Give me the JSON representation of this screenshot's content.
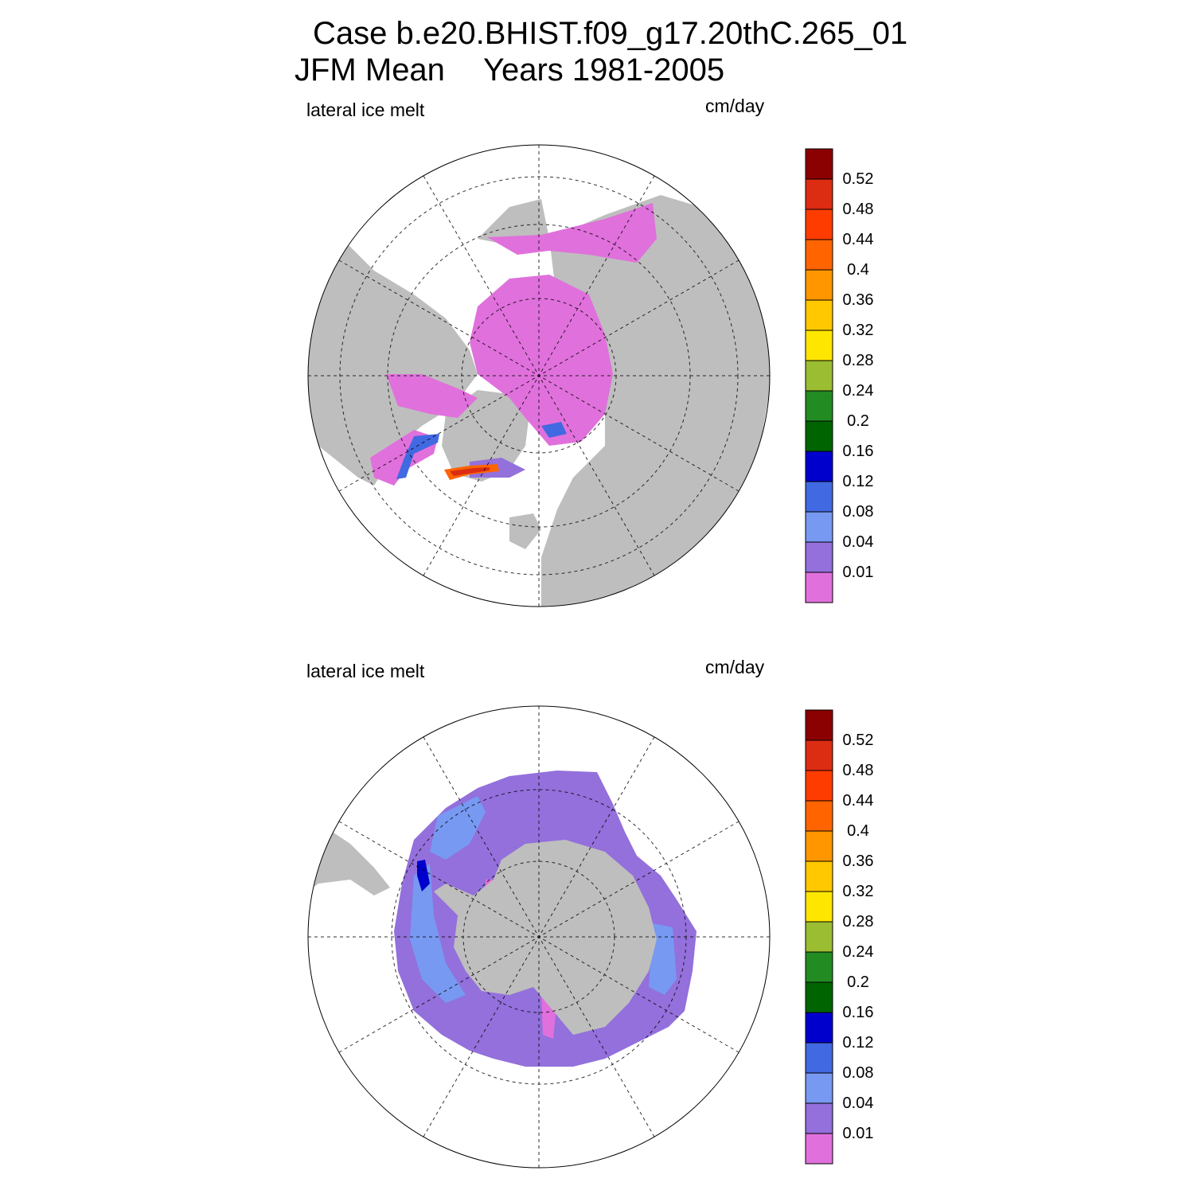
{
  "title": {
    "line1": "Case b.e20.BHIST.f09_g17.20thC.265_01",
    "season": "JFM Mean",
    "years": "Years 1981-2005"
  },
  "panels": [
    {
      "hemisphere": "north",
      "variable_label": "lateral ice melt",
      "units": "cm/day"
    },
    {
      "hemisphere": "south",
      "variable_label": "lateral ice melt",
      "units": "cm/day"
    }
  ],
  "colorbar": {
    "levels": [
      "0.52",
      "0.48",
      "0.44",
      "0.4",
      "0.36",
      "0.32",
      "0.28",
      "0.24",
      "0.2",
      "0.16",
      "0.12",
      "0.08",
      "0.04",
      "0.01"
    ],
    "colors": [
      "#8b0000",
      "#dc2c12",
      "#ff3c00",
      "#ff6400",
      "#ff9600",
      "#ffc800",
      "#ffe600",
      "#9abd32",
      "#228b22",
      "#006400",
      "#0000cd",
      "#4169e1",
      "#7799f2",
      "#9370db",
      "#e070dc"
    ]
  },
  "colors": {
    "land": "#bebebe",
    "ocean": "#ffffff"
  }
}
